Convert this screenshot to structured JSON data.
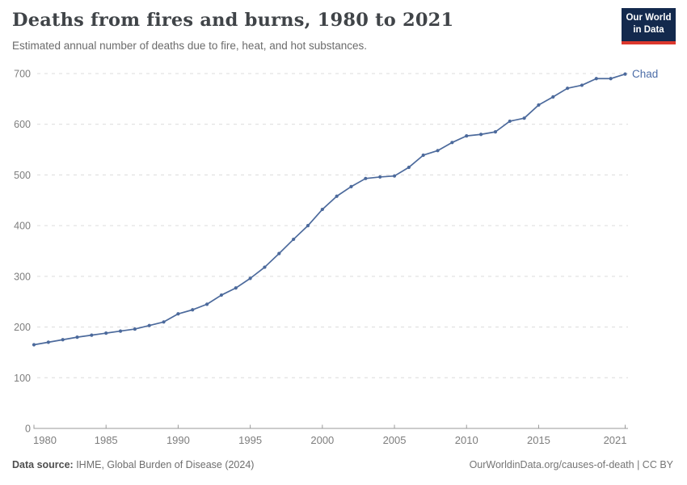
{
  "header": {
    "title": "Deaths from fires and burns, 1980 to 2021",
    "subtitle": "Estimated annual number of deaths due to fire, heat, and hot substances.",
    "logo_line1": "Our World",
    "logo_line2": "in Data"
  },
  "chart_data": {
    "type": "line",
    "title": "Deaths from fires and burns, 1980 to 2021",
    "subtitle": "Estimated annual number of deaths due to fire, heat, and hot substances.",
    "series": [
      {
        "name": "Chad",
        "x": [
          1980,
          1981,
          1982,
          1983,
          1984,
          1985,
          1986,
          1987,
          1988,
          1989,
          1990,
          1991,
          1992,
          1993,
          1994,
          1995,
          1996,
          1997,
          1998,
          1999,
          2000,
          2001,
          2002,
          2003,
          2004,
          2005,
          2006,
          2007,
          2008,
          2009,
          2010,
          2011,
          2012,
          2013,
          2014,
          2015,
          2016,
          2017,
          2018,
          2019,
          2020,
          2021
        ],
        "values": [
          165,
          170,
          175,
          180,
          184,
          188,
          192,
          196,
          203,
          210,
          226,
          234,
          245,
          263,
          277,
          296,
          318,
          345,
          373,
          400,
          432,
          458,
          477,
          493,
          496,
          498,
          515,
          539,
          548,
          564,
          577,
          580,
          585,
          606,
          612,
          638,
          654,
          671,
          677,
          690,
          690,
          699
        ]
      }
    ],
    "xlabel": "",
    "ylabel": "",
    "xlim": [
      1980,
      2021
    ],
    "ylim": [
      0,
      700
    ],
    "x_ticks": [
      1980,
      1985,
      1990,
      1995,
      2000,
      2005,
      2010,
      2015,
      2021
    ],
    "y_ticks": [
      0,
      100,
      200,
      300,
      400,
      500,
      600,
      700
    ],
    "grid": "horizontal dashed",
    "legend": "end-of-line entity label",
    "entity_label": "Chad",
    "colors": {
      "line": "#4c6a9c",
      "entity_label": "#4d6ea8",
      "grid": "#dcdcdc",
      "axis": "#9a9a9a",
      "tick_text": "#7d7d7d"
    }
  },
  "footer": {
    "source_label": "Data source:",
    "source_text": " IHME, Global Burden of Disease (2024)",
    "credit": "OurWorldinData.org/causes-of-death | CC BY"
  }
}
